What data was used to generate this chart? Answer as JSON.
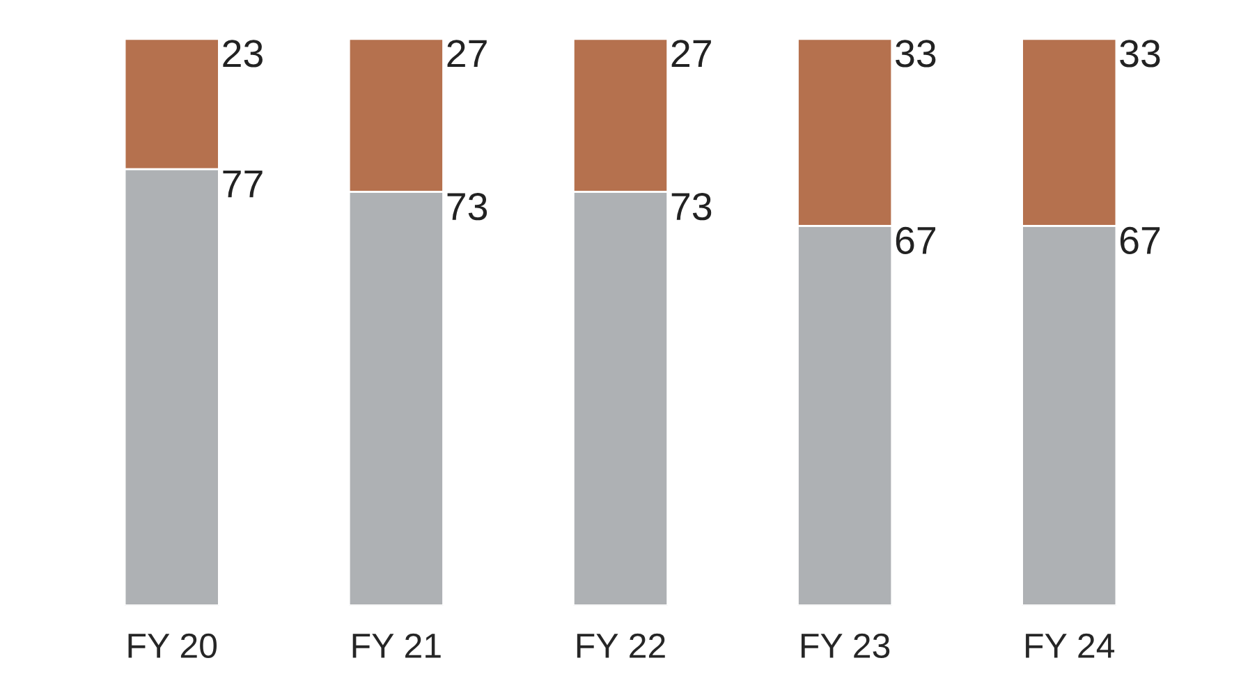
{
  "chart_data": {
    "type": "bar",
    "stacked": true,
    "data_labels": true,
    "categories": [
      "FY 20",
      "FY 21",
      "FY 22",
      "FY 23",
      "FY 24"
    ],
    "series": [
      {
        "color": "#aeb1b4",
        "values": [
          77,
          73,
          73,
          67,
          67
        ]
      },
      {
        "color": "#b5714e",
        "values": [
          23,
          27,
          27,
          33,
          33
        ]
      }
    ]
  }
}
